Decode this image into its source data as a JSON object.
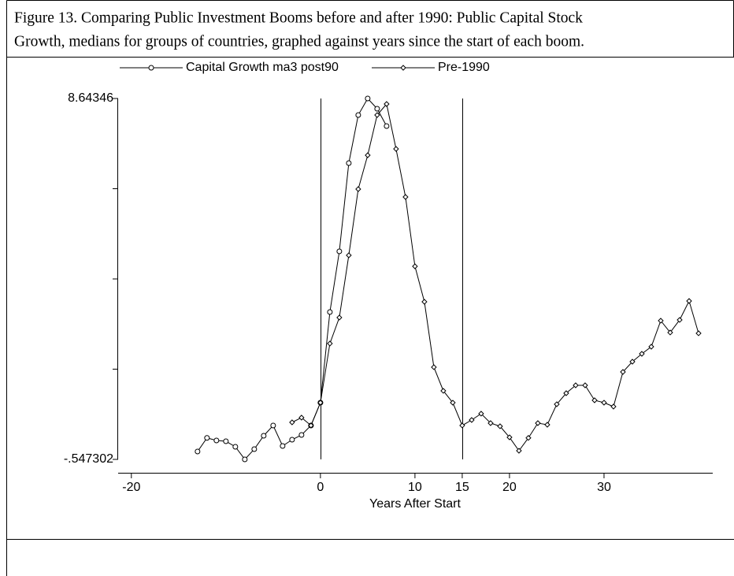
{
  "chart_data": {
    "type": "line",
    "caption": [
      "Figure 13.  Comparing Public Investment Booms before and after 1990: Public Capital Stock",
      "Growth, medians for groups of countries, graphed against years since the start of each boom."
    ],
    "xlabel": "Years After Start",
    "xlim": [
      -21.4,
      41.5
    ],
    "xticks": [
      -20,
      0,
      10,
      15,
      20,
      30
    ],
    "ylim": [
      -0.547302,
      8.64346
    ],
    "yticks": [
      {
        "value": -0.547302,
        "label": "-.547302"
      },
      {
        "value": 1.750388,
        "label": null
      },
      {
        "value": 4.048079,
        "label": null
      },
      {
        "value": 6.345769,
        "label": null
      },
      8.64346
    ],
    "xlines": [
      0,
      15
    ],
    "series": [
      {
        "name": "Capital Growth ma3 post90",
        "color": "#000000",
        "marker": "circle",
        "x": [
          -13,
          -12,
          -11,
          -10,
          -9,
          -8,
          -7,
          -6,
          -5,
          -4,
          -3,
          -2,
          -1,
          0,
          1,
          2,
          3,
          4,
          5,
          6,
          7
        ],
        "values": [
          -0.347,
          0.0,
          -0.066,
          -0.086,
          -0.226,
          -0.547,
          -0.287,
          0.055,
          0.316,
          -0.206,
          -0.046,
          0.075,
          0.316,
          0.897,
          3.205,
          4.75,
          6.998,
          8.222,
          8.643,
          8.383,
          7.941
        ]
      },
      {
        "name": "Pre-1990",
        "color": "#000000",
        "marker": "diamond",
        "x": [
          -3,
          -2,
          -1,
          0,
          1,
          2,
          3,
          4,
          5,
          6,
          7,
          8,
          9,
          10,
          11,
          12,
          13,
          14,
          15,
          16,
          17,
          18,
          19,
          20,
          21,
          22,
          23,
          24,
          25,
          26,
          27,
          28,
          29,
          30,
          31,
          32,
          33,
          34,
          35,
          36,
          37,
          38,
          39,
          40
        ],
        "values": [
          0.396,
          0.516,
          0.316,
          0.897,
          2.403,
          3.065,
          4.65,
          6.336,
          7.199,
          8.222,
          8.503,
          7.359,
          6.135,
          4.369,
          3.466,
          1.801,
          1.199,
          0.897,
          0.316,
          0.456,
          0.617,
          0.376,
          0.296,
          0.014,
          -0.327,
          0.0,
          0.376,
          0.336,
          0.857,
          1.138,
          1.339,
          1.339,
          0.958,
          0.897,
          0.797,
          1.68,
          1.941,
          2.142,
          2.322,
          2.985,
          2.684,
          3.005,
          3.486,
          2.664
        ]
      }
    ]
  }
}
